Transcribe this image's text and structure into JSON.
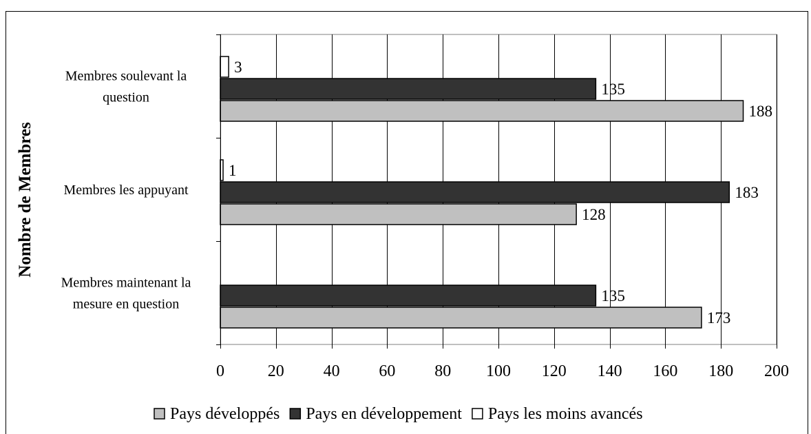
{
  "chart_data": {
    "type": "bar",
    "orientation": "horizontal",
    "title": "",
    "xlabel": "",
    "ylabel": "Nombre de Membres",
    "xlim": [
      0,
      200
    ],
    "x_ticks": [
      0,
      20,
      40,
      60,
      80,
      100,
      120,
      140,
      160,
      180,
      200
    ],
    "grid": "vertical",
    "legend_position": "bottom",
    "categories": [
      {
        "lines": [
          "Membres soulevant la",
          "question"
        ]
      },
      {
        "lines": [
          "Membres les appuyant"
        ]
      },
      {
        "lines": [
          "Membres maintenant la",
          "mesure en question"
        ]
      }
    ],
    "series": [
      {
        "name": "Pays développés",
        "color": "#c0c0c0",
        "values": [
          188,
          128,
          173
        ]
      },
      {
        "name": "Pays en développement",
        "color": "#333333",
        "values": [
          135,
          183,
          135
        ]
      },
      {
        "name": "Pays les moins avancés",
        "color": "#ffffff",
        "values": [
          3,
          1,
          null
        ]
      }
    ]
  }
}
